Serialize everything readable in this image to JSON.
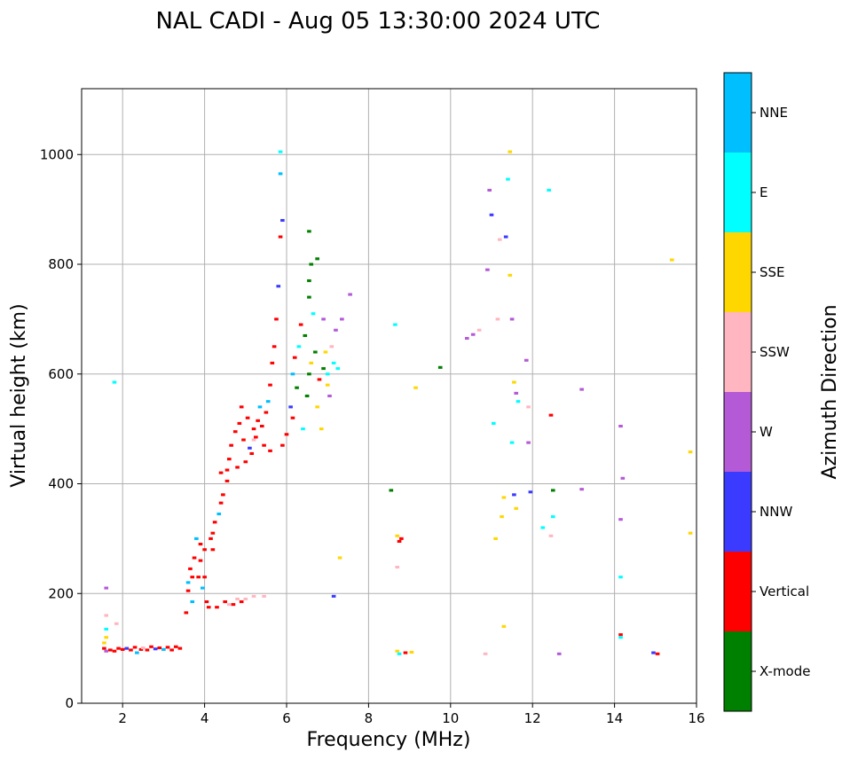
{
  "chart_data": {
    "type": "scatter",
    "title": "NAL CADI - Aug 05 13:30:00 2024 UTC",
    "xlabel": "Frequency (MHz)",
    "ylabel": "Virtual height (km)",
    "xlim": [
      1,
      16
    ],
    "ylim": [
      0,
      1120
    ],
    "xticks": [
      2,
      4,
      6,
      8,
      10,
      12,
      14,
      16
    ],
    "yticks": [
      0,
      200,
      400,
      600,
      800,
      1000
    ],
    "grid": true,
    "colorbar": {
      "title": "Azimuth Direction",
      "categories": [
        {
          "name": "X-mode",
          "color": "#008000"
        },
        {
          "name": "Vertical",
          "color": "#ff0000"
        },
        {
          "name": "NNW",
          "color": "#3b3bff"
        },
        {
          "name": "W",
          "color": "#b45ad6"
        },
        {
          "name": "SSW",
          "color": "#ffb6c1"
        },
        {
          "name": "SSE",
          "color": "#ffd700"
        },
        {
          "name": "E",
          "color": "#00ffff"
        },
        {
          "name": "NNE",
          "color": "#00bfff"
        }
      ]
    },
    "mark_size_mhz": 0.1,
    "mark_size_km": 5,
    "points": [
      [
        1.55,
        100,
        1
      ],
      [
        1.6,
        95,
        3
      ],
      [
        1.55,
        110,
        5
      ],
      [
        1.6,
        120,
        5
      ],
      [
        1.6,
        135,
        6
      ],
      [
        1.7,
        97,
        1
      ],
      [
        1.8,
        95,
        1
      ],
      [
        1.9,
        100,
        1
      ],
      [
        2.0,
        98,
        1
      ],
      [
        2.1,
        100,
        2
      ],
      [
        2.2,
        97,
        1
      ],
      [
        2.3,
        102,
        1
      ],
      [
        2.35,
        92,
        7
      ],
      [
        2.45,
        98,
        1
      ],
      [
        2.5,
        101,
        4
      ],
      [
        2.6,
        97,
        1
      ],
      [
        2.7,
        103,
        1
      ],
      [
        2.8,
        99,
        2
      ],
      [
        2.9,
        101,
        1
      ],
      [
        3.0,
        98,
        7
      ],
      [
        3.1,
        102,
        1
      ],
      [
        3.2,
        97,
        1
      ],
      [
        3.3,
        103,
        1
      ],
      [
        3.4,
        100,
        1
      ],
      [
        1.6,
        160,
        4
      ],
      [
        1.6,
        210,
        3
      ],
      [
        1.85,
        145,
        4
      ],
      [
        1.8,
        585,
        6
      ],
      [
        3.55,
        165,
        1
      ],
      [
        3.6,
        205,
        1
      ],
      [
        3.6,
        220,
        7
      ],
      [
        3.65,
        245,
        1
      ],
      [
        3.7,
        185,
        7
      ],
      [
        3.75,
        265,
        1
      ],
      [
        3.8,
        300,
        7
      ],
      [
        3.85,
        230,
        1
      ],
      [
        3.9,
        290,
        1
      ],
      [
        3.95,
        210,
        7
      ],
      [
        4.0,
        280,
        1
      ],
      [
        4.05,
        185,
        1
      ],
      [
        4.1,
        175,
        1
      ],
      [
        4.15,
        300,
        1
      ],
      [
        4.2,
        310,
        1
      ],
      [
        4.25,
        330,
        1
      ],
      [
        4.3,
        175,
        1
      ],
      [
        4.35,
        345,
        7
      ],
      [
        4.4,
        365,
        1
      ],
      [
        4.45,
        380,
        1
      ],
      [
        4.5,
        185,
        1
      ],
      [
        4.55,
        405,
        1
      ],
      [
        4.55,
        425,
        1
      ],
      [
        4.6,
        445,
        1
      ],
      [
        4.6,
        180,
        4
      ],
      [
        4.65,
        470,
        1
      ],
      [
        4.7,
        180,
        1
      ],
      [
        4.75,
        495,
        1
      ],
      [
        4.8,
        190,
        4
      ],
      [
        4.85,
        510,
        1
      ],
      [
        4.9,
        185,
        1
      ],
      [
        4.9,
        540,
        1
      ],
      [
        4.95,
        480,
        1
      ],
      [
        5.0,
        190,
        4
      ],
      [
        5.05,
        520,
        1
      ],
      [
        5.1,
        465,
        2
      ],
      [
        5.15,
        455,
        1
      ],
      [
        5.2,
        500,
        1
      ],
      [
        5.2,
        195,
        4
      ],
      [
        5.25,
        485,
        1
      ],
      [
        5.3,
        515,
        1
      ],
      [
        5.35,
        540,
        7
      ],
      [
        5.4,
        505,
        1
      ],
      [
        5.45,
        470,
        1
      ],
      [
        5.5,
        530,
        1
      ],
      [
        5.55,
        550,
        7
      ],
      [
        5.6,
        580,
        1
      ],
      [
        5.65,
        620,
        1
      ],
      [
        5.7,
        650,
        1
      ],
      [
        5.75,
        700,
        1
      ],
      [
        5.8,
        760,
        2
      ],
      [
        5.85,
        850,
        1
      ],
      [
        5.9,
        880,
        2
      ],
      [
        5.85,
        965,
        7
      ],
      [
        5.85,
        1005,
        6
      ],
      [
        5.45,
        195,
        4
      ],
      [
        3.7,
        230,
        1
      ],
      [
        3.9,
        260,
        1
      ],
      [
        4.0,
        230,
        1
      ],
      [
        4.2,
        280,
        1
      ],
      [
        4.4,
        420,
        1
      ],
      [
        4.8,
        430,
        1
      ],
      [
        5.0,
        440,
        1
      ],
      [
        5.2,
        480,
        4
      ],
      [
        5.6,
        460,
        1
      ],
      [
        5.9,
        470,
        1
      ],
      [
        6.0,
        490,
        1
      ],
      [
        6.1,
        540,
        2
      ],
      [
        6.15,
        600,
        7
      ],
      [
        6.2,
        630,
        1
      ],
      [
        6.3,
        650,
        6
      ],
      [
        6.35,
        690,
        1
      ],
      [
        6.45,
        670,
        0
      ],
      [
        6.5,
        560,
        0
      ],
      [
        6.55,
        600,
        0
      ],
      [
        6.6,
        620,
        5
      ],
      [
        6.65,
        710,
        6
      ],
      [
        6.7,
        640,
        0
      ],
      [
        6.75,
        540,
        5
      ],
      [
        6.8,
        590,
        1
      ],
      [
        6.85,
        500,
        5
      ],
      [
        6.9,
        610,
        0
      ],
      [
        6.95,
        640,
        5
      ],
      [
        7.0,
        600,
        6
      ],
      [
        7.05,
        560,
        3
      ],
      [
        7.1,
        650,
        4
      ],
      [
        7.15,
        620,
        6
      ],
      [
        7.2,
        680,
        3
      ],
      [
        7.25,
        610,
        6
      ],
      [
        6.6,
        800,
        0
      ],
      [
        6.75,
        810,
        0
      ],
      [
        6.55,
        860,
        0
      ],
      [
        6.55,
        770,
        0
      ],
      [
        6.55,
        740,
        0
      ],
      [
        7.35,
        700,
        3
      ],
      [
        7.55,
        745,
        3
      ],
      [
        6.15,
        520,
        1
      ],
      [
        6.25,
        575,
        0
      ],
      [
        6.4,
        500,
        6
      ],
      [
        6.9,
        700,
        3
      ],
      [
        7.0,
        580,
        5
      ],
      [
        7.3,
        265,
        5
      ],
      [
        7.15,
        195,
        2
      ],
      [
        8.55,
        388,
        0
      ],
      [
        8.65,
        690,
        6
      ],
      [
        8.7,
        305,
        5
      ],
      [
        8.75,
        295,
        1
      ],
      [
        8.8,
        300,
        1
      ],
      [
        8.7,
        248,
        4
      ],
      [
        8.7,
        95,
        5
      ],
      [
        8.75,
        90,
        6
      ],
      [
        8.9,
        92,
        1
      ],
      [
        9.05,
        93,
        5
      ],
      [
        9.15,
        575,
        5
      ],
      [
        9.75,
        612,
        0
      ],
      [
        10.4,
        665,
        3
      ],
      [
        10.55,
        672,
        3
      ],
      [
        10.7,
        680,
        4
      ],
      [
        10.85,
        90,
        4
      ],
      [
        10.9,
        790,
        3
      ],
      [
        10.95,
        935,
        3
      ],
      [
        11.0,
        890,
        2
      ],
      [
        11.05,
        510,
        6
      ],
      [
        11.1,
        300,
        5
      ],
      [
        11.15,
        700,
        4
      ],
      [
        11.2,
        845,
        4
      ],
      [
        11.25,
        340,
        5
      ],
      [
        11.3,
        375,
        5
      ],
      [
        11.35,
        850,
        2
      ],
      [
        11.4,
        955,
        6
      ],
      [
        11.45,
        1005,
        5
      ],
      [
        11.45,
        780,
        5
      ],
      [
        11.5,
        700,
        3
      ],
      [
        11.55,
        585,
        5
      ],
      [
        11.6,
        565,
        3
      ],
      [
        11.65,
        550,
        6
      ],
      [
        11.5,
        475,
        6
      ],
      [
        11.55,
        380,
        2
      ],
      [
        11.6,
        355,
        5
      ],
      [
        11.3,
        140,
        5
      ],
      [
        11.85,
        625,
        3
      ],
      [
        11.9,
        540,
        4
      ],
      [
        11.9,
        475,
        3
      ],
      [
        11.95,
        385,
        2
      ],
      [
        12.25,
        320,
        6
      ],
      [
        12.4,
        935,
        6
      ],
      [
        12.45,
        525,
        1
      ],
      [
        12.5,
        388,
        0
      ],
      [
        12.5,
        340,
        6
      ],
      [
        12.45,
        305,
        4
      ],
      [
        12.65,
        90,
        3
      ],
      [
        13.2,
        572,
        3
      ],
      [
        13.2,
        390,
        3
      ],
      [
        14.15,
        505,
        3
      ],
      [
        14.2,
        410,
        3
      ],
      [
        14.15,
        335,
        3
      ],
      [
        14.15,
        230,
        6
      ],
      [
        14.15,
        125,
        1
      ],
      [
        14.15,
        120,
        6
      ],
      [
        14.95,
        92,
        2
      ],
      [
        15.05,
        90,
        1
      ],
      [
        15.4,
        808,
        5
      ],
      [
        15.85,
        458,
        5
      ],
      [
        15.85,
        310,
        5
      ]
    ]
  }
}
